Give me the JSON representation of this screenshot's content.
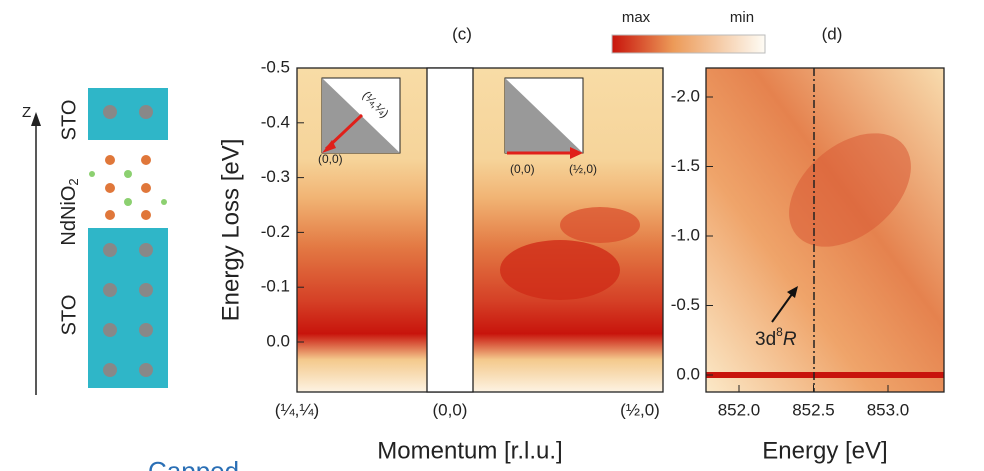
{
  "structure": {
    "axis_label": "Z",
    "layers": [
      "STO",
      {
        "text": "NdNiO",
        "sub": "2"
      },
      "STO"
    ]
  },
  "colorbar": {
    "max_label": "max",
    "min_label": "min"
  },
  "panel_c": {
    "label": "(c)",
    "y_axis_label": "Energy Loss [eV]",
    "x_axis_label": "Momentum [r.l.u.]",
    "yticks": [
      "-0.5",
      "-0.4",
      "-0.3",
      "-0.2",
      "-0.1",
      "0.0"
    ],
    "xticks": [
      "(¼,¼)",
      "(0,0)",
      "(½,0)"
    ],
    "inset_left": {
      "origin": "(0,0)",
      "corner": "(¼,¼)"
    },
    "inset_right": {
      "origin": "(0,0)",
      "corner": "(½,0)"
    }
  },
  "panel_d": {
    "label": "(d)",
    "x_axis_label": "Energy [eV]",
    "yticks": [
      "-2.0",
      "-1.5",
      "-1.0",
      "-0.5",
      "0.0"
    ],
    "xticks": [
      "852.0",
      "852.5",
      "853.0"
    ],
    "annotation": {
      "base": "3d",
      "sup": "8",
      "italic": "R"
    }
  },
  "caption_fragment": "Capped"
}
